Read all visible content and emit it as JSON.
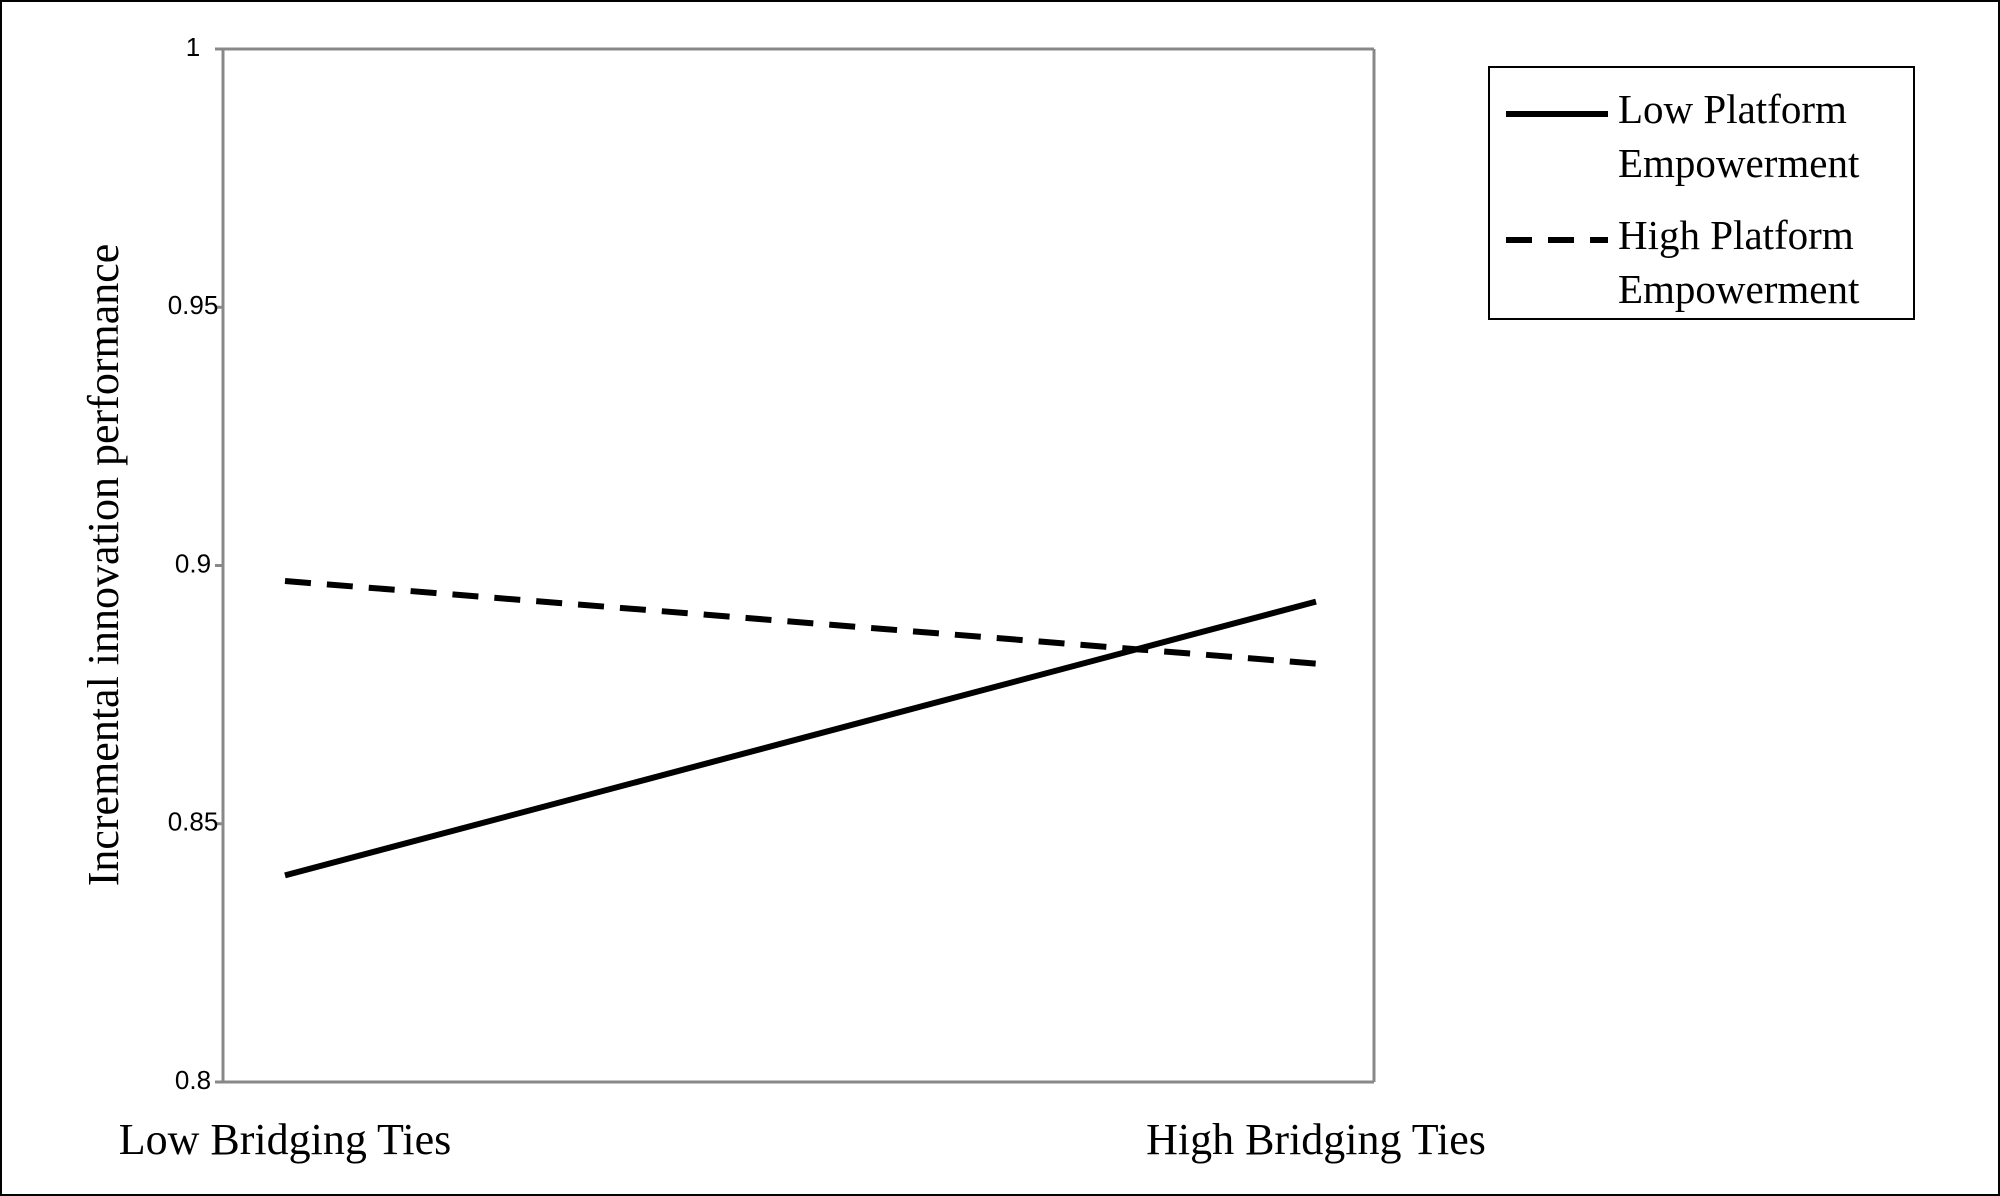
{
  "chart_data": {
    "type": "line",
    "y_label": "Incremental innovation performance",
    "categories": [
      "Low Bridging Ties",
      "High Bridging Ties"
    ],
    "series": [
      {
        "name": "Low Platform Empowerment",
        "color": "#000000",
        "dash": "solid",
        "values": [
          0.84,
          0.893
        ]
      },
      {
        "name": "High Platform Empowerment",
        "color": "#000000",
        "dash": "dashed",
        "values": [
          0.897,
          0.881
        ]
      }
    ],
    "ylim": [
      0.8,
      1
    ],
    "yticks": [
      0.8,
      0.85,
      0.9,
      0.95,
      1
    ],
    "grid": false,
    "legend": "right"
  }
}
